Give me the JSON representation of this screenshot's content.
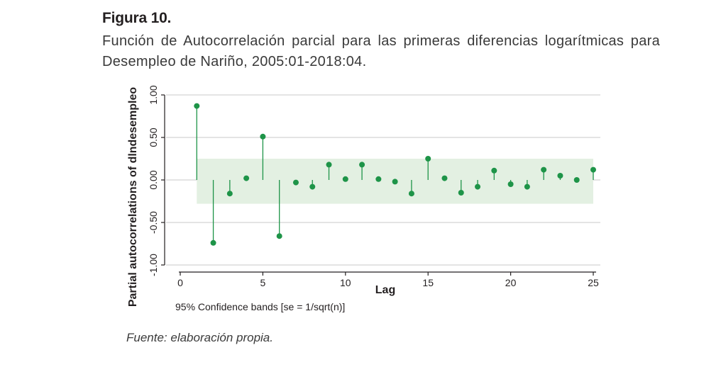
{
  "figure": {
    "label": "Figura 10.",
    "caption": "Función de Autocorrelación parcial para las primeras diferencias logarítmicas para Desempleo de Nariño, 2005:01-2018:04.",
    "source": "Fuente: elaboración propia."
  },
  "colors": {
    "marker": "#1e9448",
    "band": "#e3f0e2",
    "grid": "#c8c8c8",
    "axis": "#231f20"
  },
  "chart_data": {
    "type": "scatter",
    "style": "stem plot with shaded confidence band",
    "xlabel": "Lag",
    "ylabel": "Partial autocorrelations of dlndesempleo",
    "note": "95% Confidence bands [se = 1/sqrt(n)]",
    "xlim": [
      0,
      25
    ],
    "ylim": [
      -1.0,
      1.0
    ],
    "x_ticks": [
      0,
      5,
      10,
      15,
      20,
      25
    ],
    "x_tick_labels": [
      "0",
      "5",
      "10",
      "15",
      "20",
      "25"
    ],
    "y_ticks": [
      -1.0,
      -0.5,
      0.0,
      0.5,
      1.0
    ],
    "y_tick_labels": [
      "-1.00",
      "-0.50",
      "0.00",
      "0.50",
      "1.00"
    ],
    "grid": true,
    "confidence_band": [
      -0.28,
      0.25
    ],
    "lags": [
      1,
      2,
      3,
      4,
      5,
      6,
      7,
      8,
      9,
      10,
      11,
      12,
      13,
      14,
      15,
      16,
      17,
      18,
      19,
      20,
      21,
      22,
      23,
      24,
      25
    ],
    "values": [
      0.87,
      -0.74,
      -0.16,
      0.02,
      0.51,
      -0.66,
      -0.03,
      -0.08,
      0.18,
      0.01,
      0.18,
      0.01,
      -0.02,
      -0.16,
      0.25,
      0.02,
      -0.15,
      -0.08,
      0.11,
      -0.05,
      -0.08,
      0.12,
      0.05,
      0.0,
      0.12
    ]
  }
}
